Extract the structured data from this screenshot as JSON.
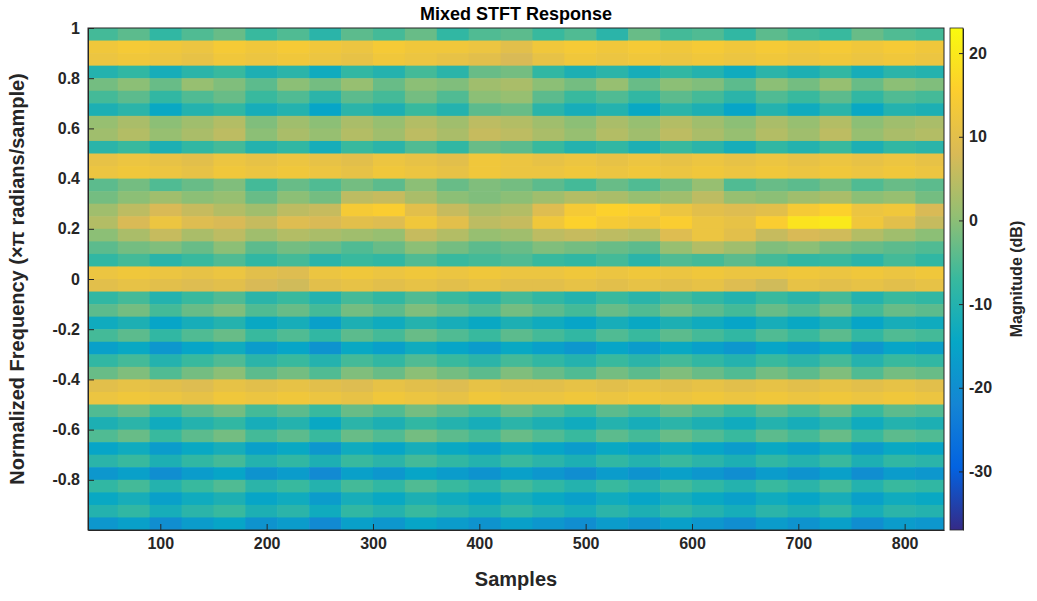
{
  "chart_data": {
    "type": "heatmap",
    "title": "Mixed STFT Response",
    "xlabel": "Samples",
    "ylabel": "Normalized Frequency (×π radians/sample)",
    "xlim": [
      32,
      837
    ],
    "ylim": [
      -1,
      1
    ],
    "xticks": [
      100,
      200,
      300,
      400,
      500,
      600,
      700,
      800
    ],
    "yticks": [
      -0.8,
      -0.6,
      -0.4,
      -0.2,
      0,
      0.2,
      0.4,
      0.6,
      0.8,
      1
    ],
    "grid": false,
    "x": [
      45,
      75,
      105,
      135,
      165,
      195,
      225,
      255,
      285,
      315,
      345,
      375,
      405,
      435,
      465,
      495,
      525,
      555,
      585,
      615,
      645,
      675,
      705,
      735,
      765,
      795,
      825
    ],
    "y": [
      0.975,
      0.925,
      0.875,
      0.825,
      0.775,
      0.725,
      0.675,
      0.625,
      0.575,
      0.525,
      0.475,
      0.425,
      0.375,
      0.325,
      0.275,
      0.225,
      0.175,
      0.125,
      0.075,
      0.025,
      -0.025,
      -0.075,
      -0.125,
      -0.175,
      -0.225,
      -0.275,
      -0.325,
      -0.375,
      -0.425,
      -0.475,
      -0.525,
      -0.575,
      -0.625,
      -0.675,
      -0.725,
      -0.775,
      -0.825,
      -0.875,
      -0.925,
      -0.975
    ],
    "values": [
      [
        -6,
        -4,
        -8,
        -5,
        -3,
        -7,
        -5,
        -9,
        -4,
        -6,
        -3,
        -8,
        -5,
        -4,
        -7,
        -5,
        -9,
        -3,
        -6,
        -5,
        -8,
        -4,
        -6,
        -7,
        -3,
        -5,
        -6
      ],
      [
        13,
        14,
        13,
        12,
        14,
        13,
        14,
        13,
        12,
        14,
        13,
        13,
        12,
        10,
        13,
        14,
        13,
        14,
        13,
        14,
        13,
        14,
        13,
        14,
        13,
        14,
        13
      ],
      [
        12,
        13,
        12,
        11,
        13,
        12,
        13,
        12,
        11,
        13,
        12,
        11,
        10,
        8,
        11,
        13,
        12,
        13,
        12,
        13,
        12,
        13,
        12,
        13,
        12,
        13,
        12
      ],
      [
        -10,
        -8,
        -12,
        -9,
        -7,
        -11,
        -9,
        -13,
        -8,
        -10,
        -6,
        -9,
        -3,
        -2,
        -8,
        -11,
        -9,
        -12,
        -8,
        -10,
        -13,
        -9,
        -11,
        -8,
        -12,
        -9,
        -10
      ],
      [
        -2,
        0,
        -3,
        1,
        -1,
        -4,
        0,
        -2,
        1,
        -3,
        0,
        -1,
        2,
        3,
        0,
        -2,
        1,
        -3,
        0,
        -1,
        -4,
        0,
        -2,
        1,
        -3,
        0,
        -1
      ],
      [
        -6,
        -4,
        -8,
        -5,
        -3,
        -7,
        -5,
        -9,
        -4,
        -6,
        -2,
        -5,
        0,
        1,
        -4,
        -7,
        -5,
        -8,
        -4,
        -6,
        -9,
        -5,
        -7,
        -4,
        -8,
        -5,
        -6
      ],
      [
        -11,
        -9,
        -14,
        -10,
        -8,
        -12,
        -10,
        -15,
        -9,
        -11,
        -7,
        -10,
        -4,
        -3,
        -9,
        -12,
        -10,
        -14,
        -9,
        -11,
        -15,
        -10,
        -13,
        -9,
        -14,
        -10,
        -11
      ],
      [
        1,
        3,
        0,
        2,
        4,
        -1,
        2,
        0,
        3,
        1,
        4,
        2,
        5,
        4,
        2,
        0,
        3,
        1,
        4,
        2,
        0,
        3,
        1,
        4,
        0,
        2,
        3
      ],
      [
        2,
        4,
        1,
        3,
        5,
        0,
        3,
        1,
        4,
        2,
        5,
        3,
        6,
        5,
        3,
        1,
        4,
        2,
        5,
        3,
        1,
        4,
        2,
        5,
        1,
        3,
        4
      ],
      [
        -9,
        -7,
        -11,
        -8,
        -6,
        -10,
        -8,
        -12,
        -7,
        -9,
        -5,
        -8,
        -3,
        -4,
        -7,
        -10,
        -8,
        -11,
        -7,
        -9,
        -12,
        -8,
        -10,
        -7,
        -11,
        -8,
        -9
      ],
      [
        11,
        12,
        11,
        10,
        12,
        11,
        12,
        11,
        10,
        12,
        11,
        10,
        13,
        12,
        11,
        12,
        11,
        12,
        11,
        12,
        11,
        12,
        11,
        12,
        11,
        12,
        11
      ],
      [
        12,
        13,
        12,
        11,
        13,
        12,
        13,
        12,
        11,
        13,
        12,
        11,
        13,
        12,
        12,
        13,
        12,
        13,
        12,
        13,
        12,
        13,
        12,
        13,
        12,
        13,
        12
      ],
      [
        -4,
        -2,
        -5,
        -3,
        -1,
        -6,
        -3,
        -5,
        -2,
        -4,
        0,
        -3,
        -1,
        -2,
        -4,
        -6,
        -3,
        -5,
        -2,
        1,
        -5,
        -3,
        -4,
        -2,
        -5,
        -3,
        -4
      ],
      [
        -2,
        0,
        2,
        0,
        1,
        -3,
        0,
        -2,
        5,
        6,
        3,
        0,
        -1,
        0,
        2,
        4,
        3,
        1,
        2,
        5,
        1,
        0,
        2,
        3,
        0,
        1,
        -2
      ],
      [
        2,
        5,
        8,
        6,
        4,
        2,
        5,
        6,
        14,
        15,
        10,
        6,
        3,
        4,
        9,
        14,
        16,
        15,
        12,
        10,
        9,
        10,
        14,
        16,
        12,
        13,
        8
      ],
      [
        4,
        8,
        12,
        9,
        8,
        6,
        9,
        8,
        10,
        9,
        13,
        10,
        5,
        6,
        13,
        16,
        14,
        13,
        15,
        12,
        11,
        15,
        19,
        20,
        13,
        10,
        6
      ],
      [
        0,
        3,
        6,
        3,
        5,
        2,
        4,
        3,
        2,
        1,
        6,
        4,
        1,
        2,
        5,
        6,
        5,
        4,
        9,
        12,
        10,
        6,
        8,
        7,
        4,
        2,
        0
      ],
      [
        -4,
        -2,
        -1,
        -3,
        0,
        -4,
        -2,
        -3,
        -5,
        -3,
        0,
        -2,
        -4,
        -3,
        -1,
        -2,
        -3,
        -4,
        1,
        4,
        2,
        -1,
        0,
        -2,
        -3,
        -4,
        -5
      ],
      [
        -8,
        -6,
        -9,
        -7,
        -5,
        -8,
        -6,
        -9,
        -7,
        -8,
        -5,
        -7,
        -6,
        -5,
        -7,
        -8,
        -6,
        -9,
        -5,
        -6,
        -4,
        -6,
        -8,
        -7,
        -9,
        -6,
        -8
      ],
      [
        12,
        13,
        12,
        11,
        12,
        10,
        9,
        12,
        13,
        12,
        13,
        12,
        13,
        12,
        12,
        13,
        12,
        13,
        12,
        13,
        12,
        12,
        13,
        12,
        13,
        12,
        13
      ],
      [
        10,
        11,
        10,
        9,
        10,
        8,
        7,
        10,
        11,
        10,
        11,
        10,
        11,
        10,
        10,
        11,
        10,
        11,
        10,
        11,
        9,
        7,
        11,
        10,
        11,
        10,
        11
      ],
      [
        -8,
        -6,
        -10,
        -7,
        -5,
        -9,
        -7,
        -10,
        -6,
        -8,
        -5,
        -7,
        -9,
        -6,
        -8,
        -10,
        -7,
        -9,
        -6,
        -8,
        -10,
        -7,
        -9,
        -6,
        -10,
        -7,
        -8
      ],
      [
        -4,
        -2,
        -6,
        -3,
        -1,
        -5,
        -3,
        -6,
        -2,
        -4,
        -1,
        -3,
        -5,
        -2,
        -4,
        -6,
        -3,
        -5,
        -2,
        -4,
        -6,
        -3,
        -5,
        -2,
        -6,
        -3,
        -4
      ],
      [
        -13,
        -11,
        -15,
        -12,
        -10,
        -14,
        -12,
        -16,
        -11,
        -13,
        -10,
        -12,
        -14,
        -11,
        -13,
        -15,
        -12,
        -14,
        -11,
        -13,
        -15,
        -12,
        -14,
        -11,
        -15,
        -12,
        -13
      ],
      [
        -6,
        -4,
        -8,
        -5,
        -3,
        -7,
        -5,
        -8,
        -4,
        -6,
        -3,
        -5,
        -7,
        -4,
        -6,
        -8,
        -5,
        -7,
        -4,
        -6,
        -8,
        -5,
        -7,
        -4,
        -8,
        -5,
        -6
      ],
      [
        -16,
        -14,
        -18,
        -15,
        -13,
        -17,
        -15,
        -19,
        -14,
        -16,
        -13,
        -15,
        -17,
        -14,
        -16,
        -18,
        -15,
        -17,
        -14,
        -16,
        -18,
        -15,
        -17,
        -14,
        -18,
        -15,
        -16
      ],
      [
        -8,
        -6,
        -10,
        -7,
        -5,
        -9,
        -7,
        -10,
        -6,
        -8,
        -5,
        -7,
        -9,
        -6,
        -8,
        -10,
        -7,
        -9,
        -6,
        -8,
        -10,
        -7,
        -9,
        -6,
        -10,
        -7,
        -8
      ],
      [
        -3,
        -1,
        -5,
        -2,
        0,
        -4,
        -2,
        -5,
        -1,
        -3,
        0,
        -2,
        -4,
        -1,
        -3,
        -5,
        -2,
        -4,
        -1,
        -3,
        -5,
        -2,
        -4,
        -1,
        -5,
        -2,
        -3
      ],
      [
        10,
        11,
        10,
        9,
        11,
        10,
        11,
        10,
        9,
        11,
        10,
        9,
        11,
        10,
        10,
        11,
        10,
        11,
        10,
        11,
        10,
        11,
        10,
        11,
        10,
        11,
        10
      ],
      [
        12,
        13,
        12,
        11,
        13,
        12,
        13,
        12,
        11,
        13,
        12,
        11,
        13,
        12,
        12,
        13,
        12,
        13,
        12,
        13,
        12,
        13,
        12,
        13,
        12,
        13,
        12
      ],
      [
        -5,
        -3,
        -7,
        -4,
        -2,
        -6,
        -4,
        -7,
        -3,
        -5,
        -2,
        -4,
        -6,
        -3,
        -5,
        -7,
        -4,
        -6,
        -3,
        -5,
        -7,
        -4,
        -6,
        -3,
        -7,
        -4,
        -5
      ],
      [
        -11,
        -9,
        -13,
        -10,
        -8,
        -12,
        -10,
        -14,
        -9,
        -11,
        -8,
        -10,
        -12,
        -9,
        -11,
        -13,
        -10,
        -12,
        -9,
        -11,
        -13,
        -10,
        -12,
        -9,
        -13,
        -10,
        -11
      ],
      [
        -5,
        -3,
        -7,
        -4,
        -2,
        -6,
        -4,
        -7,
        -3,
        -5,
        -2,
        -4,
        -6,
        -3,
        -5,
        -7,
        -4,
        -6,
        -3,
        -5,
        -7,
        -4,
        -6,
        -3,
        -7,
        -4,
        -5
      ],
      [
        -15,
        -13,
        -17,
        -14,
        -12,
        -16,
        -14,
        -18,
        -13,
        -15,
        -12,
        -14,
        -16,
        -13,
        -15,
        -17,
        -14,
        -16,
        -13,
        -15,
        -17,
        -14,
        -16,
        -13,
        -17,
        -14,
        -15
      ],
      [
        -9,
        -7,
        -11,
        -8,
        -6,
        -10,
        -8,
        -11,
        -7,
        -9,
        -6,
        -8,
        -10,
        -7,
        -9,
        -11,
        -8,
        -10,
        -7,
        -9,
        -11,
        -8,
        -10,
        -7,
        -11,
        -8,
        -9
      ],
      [
        -18,
        -16,
        -20,
        -17,
        -15,
        -19,
        -17,
        -21,
        -16,
        -18,
        -15,
        -17,
        -19,
        -16,
        -18,
        -20,
        -17,
        -19,
        -16,
        -18,
        -20,
        -17,
        -19,
        -16,
        -20,
        -17,
        -18
      ],
      [
        -8,
        -6,
        -10,
        -7,
        -5,
        -9,
        -7,
        -10,
        -6,
        -8,
        -5,
        -7,
        -9,
        -6,
        -8,
        -10,
        -7,
        -9,
        -6,
        -8,
        -10,
        -7,
        -9,
        -6,
        -10,
        -7,
        -8
      ],
      [
        -14,
        -12,
        -16,
        -13,
        -11,
        -15,
        -13,
        -17,
        -12,
        -14,
        -11,
        -13,
        -15,
        -12,
        -14,
        -16,
        -13,
        -15,
        -12,
        -14,
        -16,
        -13,
        -15,
        -12,
        -16,
        -13,
        -14
      ],
      [
        -10,
        -8,
        -12,
        -9,
        -7,
        -11,
        -9,
        -13,
        -8,
        -10,
        -7,
        -9,
        -11,
        -8,
        -10,
        -12,
        -9,
        -11,
        -8,
        -10,
        -12,
        -9,
        -11,
        -8,
        -12,
        -9,
        -10
      ],
      [
        -18,
        -16,
        -20,
        -17,
        -15,
        -19,
        -17,
        -21,
        -16,
        -18,
        -15,
        -17,
        -19,
        -16,
        -18,
        -20,
        -17,
        -19,
        -16,
        -18,
        -20,
        -17,
        -19,
        -16,
        -20,
        -17,
        -18
      ]
    ],
    "colorbar_label": "Magnitude (dB)",
    "colorbar_range": [
      -37,
      23
    ],
    "colorbar_ticks": [
      -30,
      -20,
      -10,
      0,
      10,
      20
    ]
  }
}
